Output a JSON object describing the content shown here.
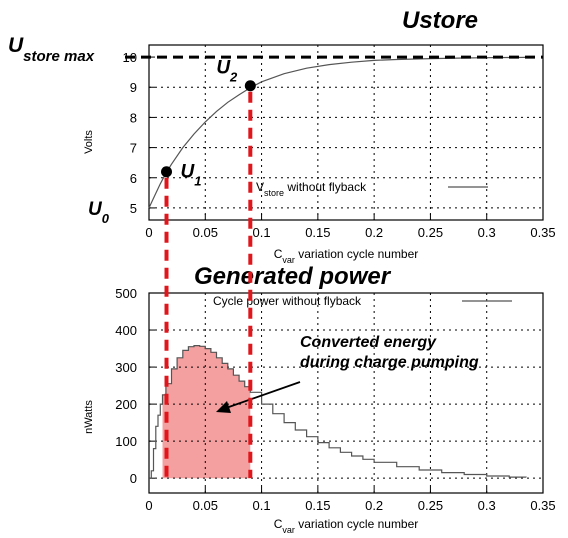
{
  "chart_data": [
    {
      "type": "line",
      "title": "Ustore",
      "xlabel": "C",
      "xlabel_sub": "var",
      "xlabel_rest": " variation cycle number",
      "ylabel": "Volts",
      "xlim": [
        0,
        0.35
      ],
      "ylim": [
        4.6,
        10.4
      ],
      "xticks": [
        "0",
        "0.05",
        "0.1",
        "0.15",
        "0.2",
        "0.25",
        "0.3",
        "0.35"
      ],
      "yticks": [
        "5",
        "6",
        "7",
        "8",
        "9",
        "10"
      ],
      "grid": true,
      "legend_placement": "bottom-right",
      "series": [
        {
          "name_pre": "V",
          "name_sub": "store",
          "name_post": " without flyback",
          "x": [
            0,
            0.005,
            0.01,
            0.015,
            0.02,
            0.03,
            0.04,
            0.05,
            0.06,
            0.07,
            0.08,
            0.09,
            0.1,
            0.12,
            0.14,
            0.16,
            0.18,
            0.2,
            0.22,
            0.25,
            0.28,
            0.3,
            0.335
          ],
          "values": [
            5.0,
            5.4,
            5.8,
            6.15,
            6.45,
            7.0,
            7.45,
            7.85,
            8.2,
            8.5,
            8.75,
            8.98,
            9.18,
            9.45,
            9.63,
            9.75,
            9.83,
            9.89,
            9.92,
            9.95,
            9.97,
            9.98,
            9.99
          ]
        }
      ],
      "annotations": {
        "max_label": "U",
        "max_label_sub": "store max",
        "max_value": 10,
        "u0_label": "U",
        "u0_sub": "0",
        "u0_value": 5,
        "u1_label": "U",
        "u1_sub": "1",
        "u1_point": [
          0.012,
          6.2
        ],
        "u2_label": "U",
        "u2_sub": "2",
        "u2_point": [
          0.09,
          9.05
        ]
      }
    },
    {
      "type": "area",
      "title": "Generated power",
      "xlabel": "C",
      "xlabel_sub": "var",
      "xlabel_rest": " variation cycle number",
      "ylabel": "nWatts",
      "xlim": [
        0,
        0.35
      ],
      "ylim": [
        -40,
        500
      ],
      "xticks": [
        "0",
        "0.05",
        "0.1",
        "0.15",
        "0.2",
        "0.25",
        "0.3",
        "0.35"
      ],
      "yticks": [
        "0",
        "100",
        "200",
        "300",
        "400",
        "500"
      ],
      "grid": true,
      "legend_placement": "top-right",
      "series": [
        {
          "name": "Cycle power without flyback",
          "x": [
            0,
            0.002,
            0.004,
            0.006,
            0.008,
            0.01,
            0.012,
            0.015,
            0.02,
            0.025,
            0.03,
            0.035,
            0.04,
            0.045,
            0.05,
            0.055,
            0.06,
            0.065,
            0.07,
            0.075,
            0.08,
            0.085,
            0.09,
            0.1,
            0.11,
            0.12,
            0.13,
            0.14,
            0.15,
            0.16,
            0.17,
            0.18,
            0.19,
            0.2,
            0.22,
            0.24,
            0.26,
            0.28,
            0.3,
            0.32,
            0.335
          ],
          "values": [
            0,
            20,
            80,
            140,
            170,
            200,
            225,
            255,
            295,
            325,
            345,
            355,
            358,
            356,
            350,
            340,
            325,
            310,
            295,
            278,
            262,
            247,
            232,
            200,
            174,
            150,
            130,
            112,
            96,
            82,
            70,
            60,
            51,
            43,
            31,
            22,
            15,
            10,
            6,
            3,
            2
          ]
        }
      ],
      "shaded_region": {
        "x_start": 0.012,
        "x_end": 0.09,
        "color": "#f4a0a0"
      },
      "annotation": "Converted energy during charge pumping",
      "annotation_lines": [
        "Converted energy",
        "during charge pumping"
      ]
    }
  ],
  "colors": {
    "curve": "#555555",
    "dashed_red": "#e0161c",
    "shade": "#f4a0a0",
    "grid": "#000000"
  }
}
